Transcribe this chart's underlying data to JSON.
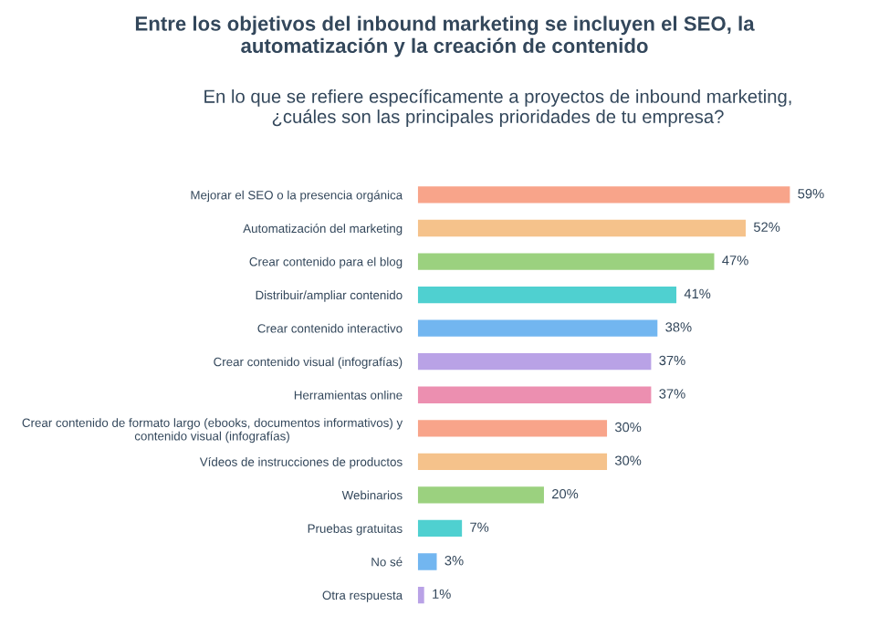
{
  "chart_data": {
    "type": "bar",
    "orientation": "horizontal",
    "title": "Entre los objetivos del inbound marketing se incluyen el SEO, la\nautomatización y la creación de contenido",
    "subtitle": "En lo que se refiere específicamente a proyectos de inbound marketing,\n¿cuáles son las principales prioridades de tu empresa?",
    "categories": [
      "Mejorar el SEO o la presencia orgánica",
      "Automatización del marketing",
      "Crear contenido para el blog",
      "Distribuir/ampliar contenido",
      "Crear contenido interactivo",
      "Crear contenido visual (infografías)",
      "Herramientas online",
      "Crear contenido de formato largo (ebooks, documentos informativos) y\ncontenido visual (infografías)",
      "Vídeos de instrucciones de productos",
      "Webinarios",
      "Pruebas gratuitas",
      "No sé",
      "Otra respuesta"
    ],
    "values": [
      59,
      52,
      47,
      41,
      38,
      37,
      37,
      30,
      30,
      20,
      7,
      3,
      1
    ],
    "value_labels": [
      "59%",
      "52%",
      "47%",
      "41%",
      "38%",
      "37%",
      "37%",
      "30%",
      "30%",
      "20%",
      "7%",
      "3%",
      "1%"
    ],
    "colors": [
      "#f8a48a",
      "#f5c28b",
      "#9bd17f",
      "#4fd0d0",
      "#72b6f0",
      "#b9a2e6",
      "#ec8fb0",
      "#f8a48a",
      "#f5c28b",
      "#9bd17f",
      "#4fd0d0",
      "#72b6f0",
      "#b9a2e6"
    ],
    "grid": false,
    "legend": false
  }
}
